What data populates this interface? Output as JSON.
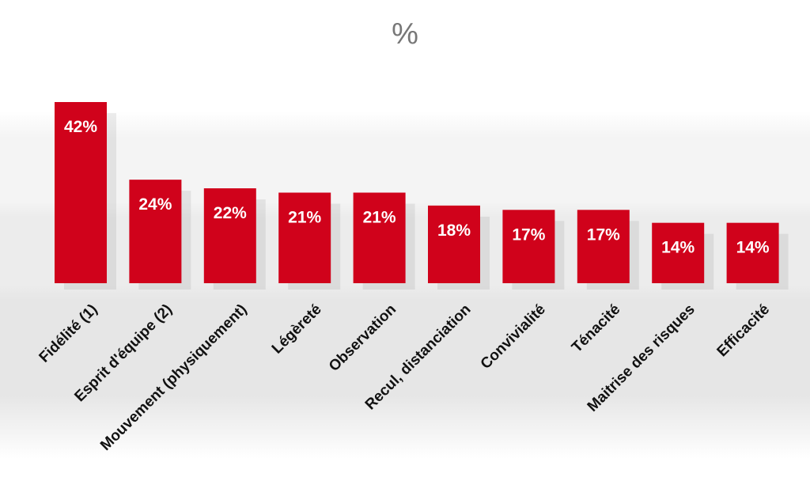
{
  "chart_data": {
    "type": "bar",
    "title": "%",
    "categories": [
      "Fidélité (1)",
      "Esprit d'équipe (2)",
      "Mouvement (physiquement)",
      "Légèreté",
      "Observation",
      "Recul, distanciation",
      "Convivialité",
      "Ténacité",
      "Maitrise des risques",
      "Efficacité"
    ],
    "values": [
      42,
      24,
      22,
      21,
      21,
      18,
      17,
      17,
      14,
      14
    ],
    "value_labels": [
      "42%",
      "24%",
      "22%",
      "21%",
      "21%",
      "18%",
      "17%",
      "17%",
      "14%",
      "14%"
    ],
    "ylim": [
      0,
      42
    ],
    "bar_color": "#d0021b",
    "label_color": "#ffffff",
    "xlabel": "",
    "ylabel": "",
    "grid": false,
    "legend": "none"
  }
}
